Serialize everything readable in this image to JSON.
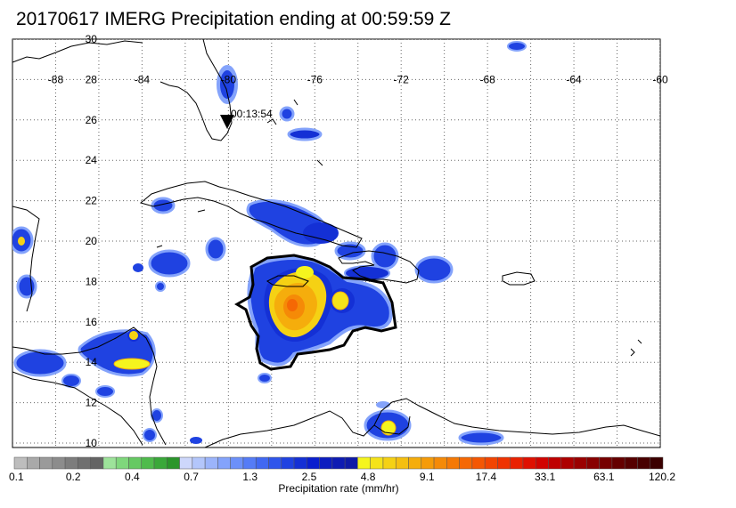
{
  "title": "20170617 IMERG Precipitation ending at 00:59:59 Z",
  "lon_labels": [
    "-88",
    "-84",
    "-80",
    "-76",
    "-72",
    "-68",
    "-64",
    "-60"
  ],
  "lat_labels": [
    "30",
    "28",
    "26",
    "24",
    "22",
    "20",
    "18",
    "16",
    "14",
    "12",
    "10"
  ],
  "storm_marker": {
    "time_label": "00:13:54",
    "symbol": "down-triangle"
  },
  "colorbar": {
    "tick_labels": [
      "0.1",
      "0.2",
      "0.4",
      "0.7",
      "1.3",
      "2.5",
      "4.8",
      "9.1",
      "17.4",
      "33.1",
      "63.1",
      "120.2"
    ],
    "label": "Precipitation rate (mm/hr)",
    "colors": [
      "#bdbdbd",
      "#a9a9a9",
      "#9a9a9a",
      "#8c8c8c",
      "#7d7d7d",
      "#707070",
      "#646464",
      "#9de39a",
      "#7fd77c",
      "#66c963",
      "#4fbb4c",
      "#3aa83a",
      "#2b952b",
      "#cdd7fb",
      "#b3c6fb",
      "#9bb4fb",
      "#84a3fb",
      "#6c90f9",
      "#557cf6",
      "#4168f2",
      "#2f55eb",
      "#1f42e1",
      "#1430d5",
      "#0a1fcf",
      "#0c1dc0",
      "#0d1bb3",
      "#0e1aa6",
      "#f5f51e",
      "#f5e319",
      "#f5d114",
      "#f5bf10",
      "#f5ad0c",
      "#f59b09",
      "#f58a07",
      "#f57905",
      "#f56804",
      "#f45703",
      "#f24502",
      "#ef3302",
      "#e92101",
      "#df1001",
      "#d10401",
      "#bf0000",
      "#ad0000",
      "#9a0000",
      "#880000",
      "#760000",
      "#650000",
      "#560000",
      "#480000",
      "#3b0000"
    ]
  }
}
